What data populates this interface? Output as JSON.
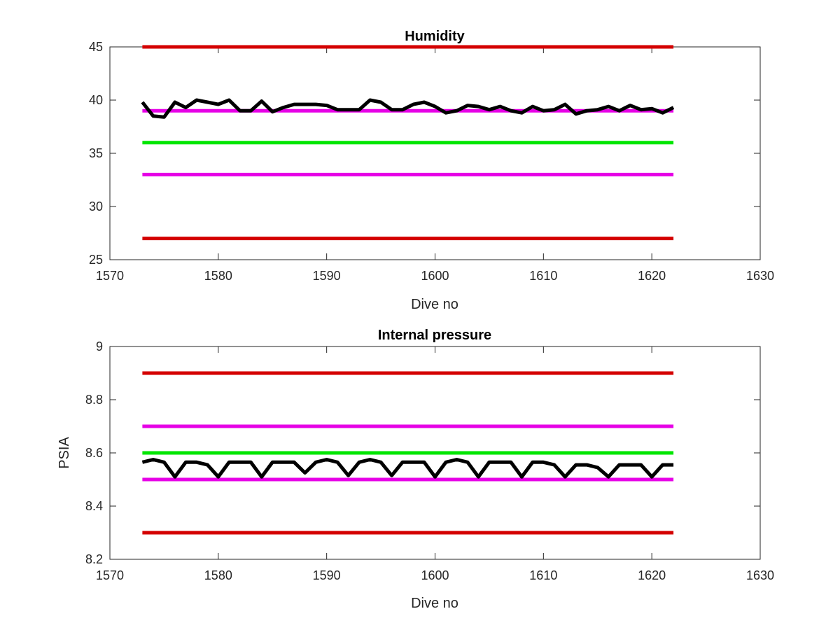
{
  "chart_data": [
    {
      "type": "line",
      "title": "Humidity",
      "xlabel": "Dive no",
      "ylabel": "",
      "xlim": [
        1570,
        1630
      ],
      "ylim": [
        25,
        45
      ],
      "xticks": [
        "1570",
        "1580",
        "1590",
        "1600",
        "1610",
        "1620",
        "1630"
      ],
      "yticks": [
        "25",
        "30",
        "35",
        "40",
        "45"
      ],
      "grid": false,
      "series": [
        {
          "color": "#d40000",
          "x": [
            1573,
            1622
          ],
          "y": [
            45,
            45
          ]
        },
        {
          "color": "#e600e6",
          "x": [
            1573,
            1622
          ],
          "y": [
            39,
            39
          ]
        },
        {
          "color": "#00e600",
          "x": [
            1573,
            1622
          ],
          "y": [
            36,
            36
          ]
        },
        {
          "color": "#e600e6",
          "x": [
            1573,
            1622
          ],
          "y": [
            33,
            33
          ]
        },
        {
          "color": "#d40000",
          "x": [
            1573,
            1622
          ],
          "y": [
            27,
            27
          ]
        },
        {
          "color": "#000000",
          "x": [
            1573,
            1574,
            1575,
            1576,
            1577,
            1578,
            1579,
            1580,
            1581,
            1582,
            1583,
            1584,
            1585,
            1586,
            1587,
            1588,
            1589,
            1590,
            1591,
            1592,
            1593,
            1594,
            1595,
            1596,
            1597,
            1598,
            1599,
            1600,
            1601,
            1602,
            1603,
            1604,
            1605,
            1606,
            1607,
            1608,
            1609,
            1610,
            1611,
            1612,
            1613,
            1614,
            1615,
            1616,
            1617,
            1618,
            1619,
            1620,
            1621,
            1622
          ],
          "y": [
            39.8,
            38.5,
            38.4,
            39.8,
            39.3,
            40.0,
            39.8,
            39.6,
            40.0,
            39.0,
            39.0,
            39.9,
            38.9,
            39.3,
            39.6,
            39.6,
            39.6,
            39.5,
            39.1,
            39.1,
            39.1,
            40.0,
            39.8,
            39.1,
            39.1,
            39.6,
            39.8,
            39.4,
            38.8,
            39.0,
            39.5,
            39.4,
            39.1,
            39.4,
            39.0,
            38.8,
            39.4,
            39.0,
            39.1,
            39.6,
            38.7,
            39.0,
            39.1,
            39.4,
            39.0,
            39.5,
            39.1,
            39.2,
            38.8,
            39.3
          ]
        }
      ]
    },
    {
      "type": "line",
      "title": "Internal pressure",
      "xlabel": "Dive no",
      "ylabel": "PSIA",
      "xlim": [
        1570,
        1630
      ],
      "ylim": [
        8.2,
        9.0
      ],
      "xticks": [
        "1570",
        "1580",
        "1590",
        "1600",
        "1610",
        "1620",
        "1630"
      ],
      "yticks": [
        "8.2",
        "8.4",
        "8.6",
        "8.8",
        "9"
      ],
      "grid": false,
      "series": [
        {
          "color": "#d40000",
          "x": [
            1573,
            1622
          ],
          "y": [
            8.9,
            8.9
          ]
        },
        {
          "color": "#e600e6",
          "x": [
            1573,
            1622
          ],
          "y": [
            8.7,
            8.7
          ]
        },
        {
          "color": "#00e600",
          "x": [
            1573,
            1622
          ],
          "y": [
            8.6,
            8.6
          ]
        },
        {
          "color": "#e600e6",
          "x": [
            1573,
            1622
          ],
          "y": [
            8.5,
            8.5
          ]
        },
        {
          "color": "#d40000",
          "x": [
            1573,
            1622
          ],
          "y": [
            8.3,
            8.3
          ]
        },
        {
          "color": "#000000",
          "x": [
            1573,
            1574,
            1575,
            1576,
            1577,
            1578,
            1579,
            1580,
            1581,
            1582,
            1583,
            1584,
            1585,
            1586,
            1587,
            1588,
            1589,
            1590,
            1591,
            1592,
            1593,
            1594,
            1595,
            1596,
            1597,
            1598,
            1599,
            1600,
            1601,
            1602,
            1603,
            1604,
            1605,
            1606,
            1607,
            1608,
            1609,
            1610,
            1611,
            1612,
            1613,
            1614,
            1615,
            1616,
            1617,
            1618,
            1619,
            1620,
            1621,
            1622
          ],
          "y": [
            8.565,
            8.575,
            8.565,
            8.51,
            8.565,
            8.565,
            8.555,
            8.51,
            8.565,
            8.565,
            8.565,
            8.51,
            8.565,
            8.565,
            8.565,
            8.525,
            8.565,
            8.575,
            8.565,
            8.515,
            8.565,
            8.575,
            8.565,
            8.515,
            8.565,
            8.565,
            8.565,
            8.51,
            8.565,
            8.575,
            8.565,
            8.51,
            8.565,
            8.565,
            8.565,
            8.51,
            8.565,
            8.565,
            8.555,
            8.51,
            8.555,
            8.555,
            8.545,
            8.51,
            8.555,
            8.555,
            8.555,
            8.51,
            8.555,
            8.555
          ]
        }
      ]
    }
  ]
}
